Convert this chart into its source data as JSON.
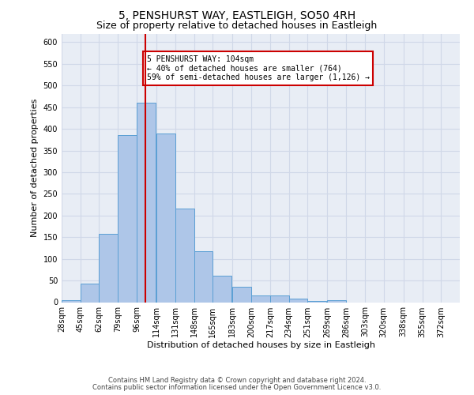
{
  "title": "5, PENSHURST WAY, EASTLEIGH, SO50 4RH",
  "subtitle": "Size of property relative to detached houses in Eastleigh",
  "xlabel": "Distribution of detached houses by size in Eastleigh",
  "ylabel": "Number of detached properties",
  "footnote1": "Contains HM Land Registry data © Crown copyright and database right 2024.",
  "footnote2": "Contains public sector information licensed under the Open Government Licence v3.0.",
  "bin_labels": [
    "28sqm",
    "45sqm",
    "62sqm",
    "79sqm",
    "96sqm",
    "114sqm",
    "131sqm",
    "148sqm",
    "165sqm",
    "183sqm",
    "200sqm",
    "217sqm",
    "234sqm",
    "251sqm",
    "269sqm",
    "286sqm",
    "303sqm",
    "320sqm",
    "338sqm",
    "355sqm",
    "372sqm"
  ],
  "bin_edges": [
    28,
    45,
    62,
    79,
    96,
    114,
    131,
    148,
    165,
    183,
    200,
    217,
    234,
    251,
    269,
    286,
    303,
    320,
    338,
    355,
    372
  ],
  "bar_values": [
    5,
    42,
    158,
    385,
    460,
    390,
    217,
    118,
    62,
    35,
    15,
    15,
    8,
    3,
    5,
    0,
    0,
    0,
    0,
    0
  ],
  "bar_color": "#aec6e8",
  "bar_edge_color": "#5a9fd4",
  "property_size": 104,
  "vline_color": "#cc0000",
  "annotation_line1": "5 PENSHURST WAY: 104sqm",
  "annotation_line2": "← 40% of detached houses are smaller (764)",
  "annotation_line3": "59% of semi-detached houses are larger (1,126) →",
  "annotation_box_color": "#cc0000",
  "ylim": [
    0,
    620
  ],
  "yticks": [
    0,
    50,
    100,
    150,
    200,
    250,
    300,
    350,
    400,
    450,
    500,
    550,
    600
  ],
  "grid_color": "#d0d8e8",
  "bg_color": "#e8edf5",
  "title_fontsize": 10,
  "subtitle_fontsize": 9,
  "axis_fontsize": 8,
  "tick_fontsize": 7,
  "annot_fontsize": 7
}
